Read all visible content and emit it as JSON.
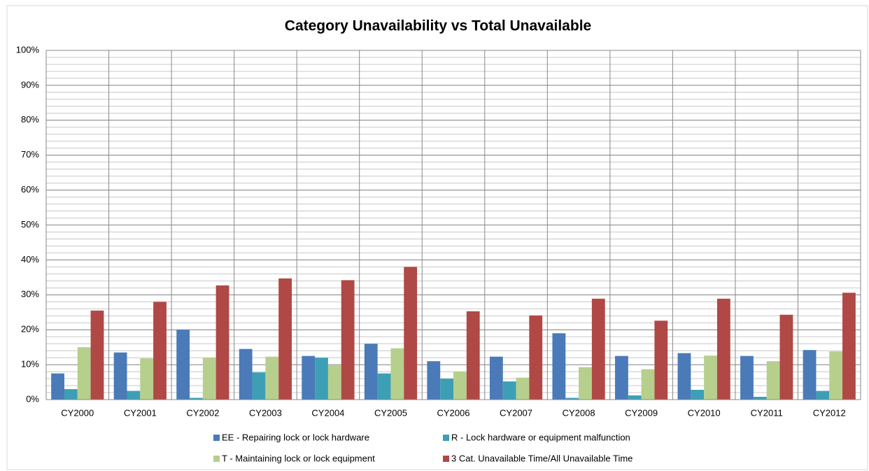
{
  "chart_data": {
    "type": "bar",
    "title": "Category Unavailability vs Total Unavailable",
    "categories": [
      "CY2000",
      "CY2001",
      "CY2002",
      "CY2003",
      "CY2004",
      "CY2005",
      "CY2006",
      "CY2007",
      "CY2008",
      "CY2009",
      "CY2010",
      "CY2011",
      "CY2012"
    ],
    "series": [
      {
        "name": "EE - Repairing lock or lock hardware",
        "color": "#4a7ab8",
        "values": [
          7.5,
          13.5,
          20,
          14.5,
          12.5,
          16,
          11,
          12.3,
          19,
          12.5,
          13.3,
          12.5,
          14.2
        ]
      },
      {
        "name": "R - Lock hardware or equipment malfunction",
        "color": "#3d9fb5",
        "values": [
          3,
          2.5,
          0.5,
          7.8,
          12,
          7.5,
          6,
          5.2,
          0.5,
          1.2,
          2.8,
          0.8,
          2.5
        ]
      },
      {
        "name": "T - Maintaining lock or lock equipment",
        "color": "#b6cf8d",
        "values": [
          15,
          11.8,
          12,
          12.3,
          9.8,
          14.7,
          8,
          6.3,
          9.3,
          8.7,
          12.6,
          11,
          13.8
        ]
      },
      {
        "name": "3 Cat. Unavailable Time/All Unavailable Time",
        "color": "#b04845",
        "values": [
          25.5,
          28,
          32.7,
          34.7,
          34.2,
          38,
          25.3,
          24.1,
          28.9,
          22.6,
          28.9,
          24.3,
          30.6
        ]
      }
    ],
    "ylim": [
      0,
      100
    ],
    "yticks": [
      {
        "value": 0,
        "label": "0%"
      },
      {
        "value": 10,
        "label": "10%"
      },
      {
        "value": 20,
        "label": "20%"
      },
      {
        "value": 30,
        "label": "30%"
      },
      {
        "value": 40,
        "label": "40%"
      },
      {
        "value": 50,
        "label": "50%"
      },
      {
        "value": 60,
        "label": "60%"
      },
      {
        "value": 70,
        "label": "70%"
      },
      {
        "value": 80,
        "label": "80%"
      },
      {
        "value": 90,
        "label": "90%"
      },
      {
        "value": 100,
        "label": "100%"
      }
    ],
    "grid": true,
    "minor_grid_step": 2,
    "legend": "bottom"
  }
}
